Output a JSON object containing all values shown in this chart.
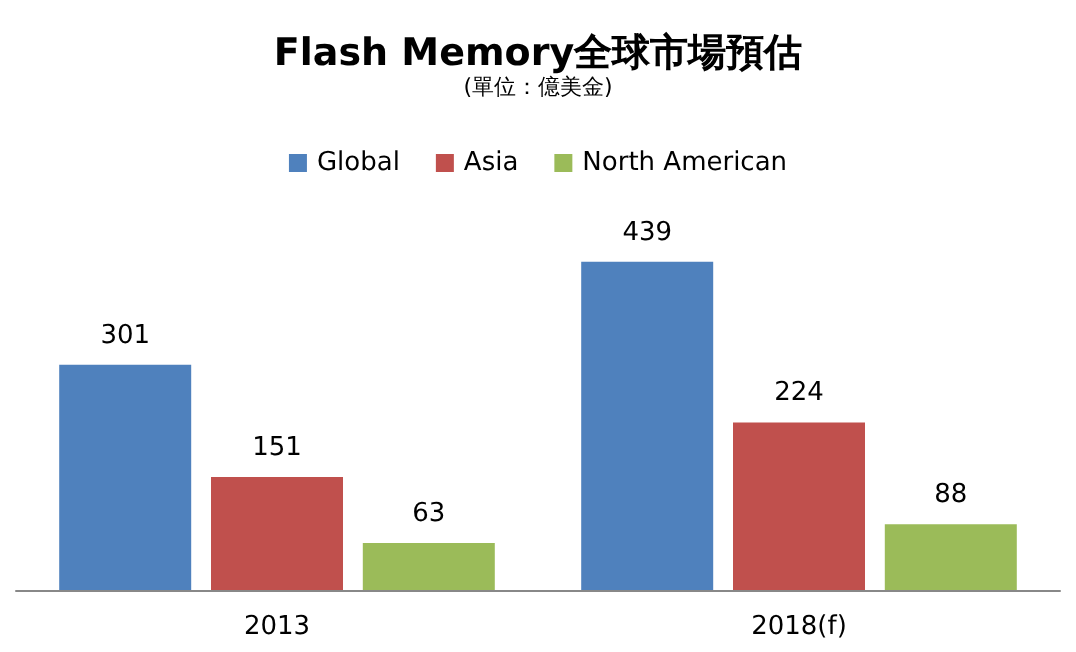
{
  "chart_data": {
    "type": "bar",
    "title": "Flash Memory全球市場預估",
    "subtitle": "(單位：億美金)",
    "categories": [
      "2013",
      "2018(f)"
    ],
    "series": [
      {
        "name": "Global",
        "color": "#4f81bd",
        "values": [
          301,
          439
        ]
      },
      {
        "name": "Asia",
        "color": "#c0504d",
        "values": [
          151,
          224
        ]
      },
      {
        "name": "North American",
        "color": "#9bbb59",
        "values": [
          63,
          88
        ]
      }
    ],
    "data_labels": true,
    "legend": "top",
    "tick_labels": "x"
  }
}
